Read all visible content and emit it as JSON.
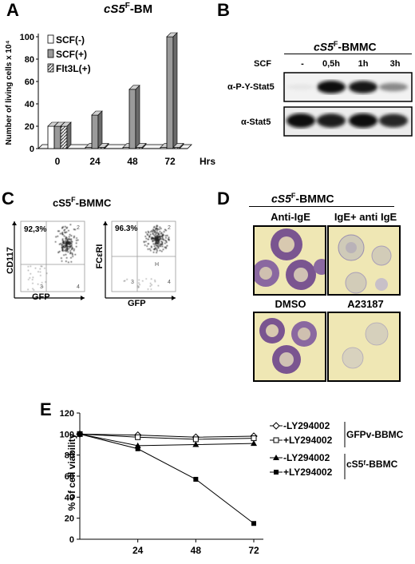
{
  "panels": {
    "A": {
      "letter": "A",
      "title_prefix": "cS5",
      "title_sup": "F",
      "title_suffix": "-BM",
      "ylabel": "Number of living cells x 10⁴",
      "xunit": "Hrs"
    },
    "B": {
      "letter": "B",
      "title_prefix": "cS5",
      "title_sup": "F",
      "title_suffix": "-BMMC",
      "scf_label": "SCF",
      "lanes": [
        "-",
        "0,5h",
        "1h",
        "3h"
      ],
      "blot1_label": "α-P-Y-Stat5",
      "blot2_label": "α-Stat5",
      "band_intensity_pY": [
        0.05,
        1.0,
        0.95,
        0.45
      ],
      "band_intensity_total": [
        1.0,
        0.95,
        1.0,
        0.9
      ]
    },
    "C": {
      "letter": "C",
      "title_prefix": "cS5",
      "title_sup": "F",
      "title_suffix": "-BMMC",
      "plot1": {
        "ylabel": "CD117",
        "xlabel": "GFP",
        "percent": "92,3%"
      },
      "plot2": {
        "ylabel": "FCεRI",
        "xlabel": "GFP",
        "percent": "96.3%"
      }
    },
    "D": {
      "letter": "D",
      "title_prefix": "cS5",
      "title_sup": "F",
      "title_suffix": "-BMMC",
      "labels": [
        "Anti-IgE",
        "IgE+ anti IgE",
        "DMSO",
        "A23187"
      ]
    },
    "E": {
      "letter": "E",
      "ylabel": "% of cell viability",
      "xunit": "hrs",
      "legend_group1": "GFPv-BBMC",
      "legend_group2": "cS5ᶠ-BBMC",
      "legend_items": [
        "-LY294002",
        "+LY294002",
        "-LY294002",
        "+LY294002"
      ]
    }
  },
  "chart_data": [
    {
      "type": "bar",
      "panel": "A",
      "categories": [
        "0",
        "24",
        "48",
        "72"
      ],
      "series": [
        {
          "name": "SCF(-)",
          "values": [
            20,
            1,
            1,
            1
          ],
          "color": "#ffffff"
        },
        {
          "name": "SCF(+)",
          "values": [
            20,
            30,
            53,
            100
          ],
          "color": "#9a9a9a"
        },
        {
          "name": "Flt3L(+)",
          "values": [
            20,
            1,
            1,
            1
          ],
          "color": "hatch"
        }
      ],
      "xlabel": "Hrs",
      "ylabel": "Number of living cells x 10⁴",
      "ylim": [
        0,
        100
      ],
      "yticks": [
        0,
        20,
        40,
        60,
        80,
        100
      ],
      "legend": "top-left"
    },
    {
      "type": "line",
      "panel": "E",
      "x": [
        0,
        24,
        48,
        72
      ],
      "xticks": [
        "24",
        "48",
        "72"
      ],
      "series": [
        {
          "name": "-LY294002",
          "group": "GFPv-BBMC",
          "marker": "open-diamond",
          "values": [
            100,
            99,
            97,
            98
          ]
        },
        {
          "name": "+LY294002",
          "group": "GFPv-BBMC",
          "marker": "open-square",
          "values": [
            100,
            97,
            95,
            96
          ]
        },
        {
          "name": "-LY294002",
          "group": "cS5F-BBMC",
          "marker": "filled-triangle",
          "values": [
            100,
            89,
            90,
            91
          ]
        },
        {
          "name": "+LY294002",
          "group": "cS5F-BBMC",
          "marker": "filled-square",
          "values": [
            100,
            86,
            57,
            15
          ]
        }
      ],
      "xlabel": "hrs",
      "ylabel": "% of cell viability",
      "ylim": [
        0,
        120
      ],
      "yticks": [
        0,
        20,
        40,
        60,
        80,
        100,
        120
      ],
      "legend": "right"
    }
  ]
}
